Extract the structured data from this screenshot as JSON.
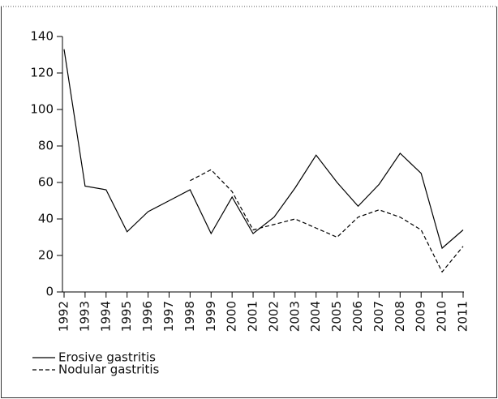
{
  "chart_data": {
    "type": "line",
    "categories": [
      "1992",
      "1993",
      "1994",
      "1995",
      "1996",
      "1997",
      "1998",
      "1999",
      "2000",
      "2001",
      "2002",
      "2003",
      "2004",
      "2005",
      "2006",
      "2007",
      "2008",
      "2009",
      "2010",
      "2011"
    ],
    "series": [
      {
        "name": "Erosive gastritis",
        "color": "#000000",
        "line_style": "solid",
        "values": [
          133,
          58,
          56,
          33,
          44,
          50,
          56,
          32,
          52,
          32,
          41,
          57,
          75,
          60,
          47,
          59,
          76,
          65,
          24,
          34
        ]
      },
      {
        "name": "Nodular gastritis",
        "color": "#000000",
        "line_style": "dashed",
        "values": [
          null,
          null,
          null,
          null,
          null,
          null,
          61,
          67,
          55,
          34,
          37,
          40,
          35,
          30,
          41,
          45,
          41,
          34,
          11,
          25
        ]
      }
    ],
    "ylim": [
      0,
      140
    ],
    "yticks": [
      0,
      20,
      40,
      60,
      80,
      100,
      120,
      140
    ],
    "grid": false,
    "legend": "bottom-left"
  }
}
